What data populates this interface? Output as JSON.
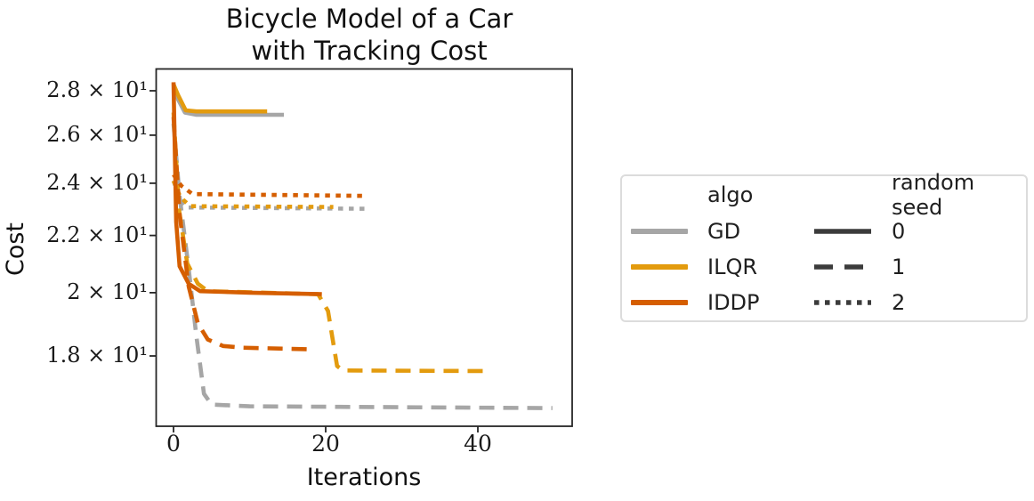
{
  "title": {
    "line1": "Bicycle Model of a Car",
    "line2": "with Tracking Cost"
  },
  "axes": {
    "x_label": "Iterations",
    "y_label": "Cost",
    "x_tick_labels": [
      "0",
      "20",
      "40"
    ],
    "y_tick_labels": [
      "2.8 × 10¹",
      "2.6 × 10¹",
      "2.4 × 10¹",
      "2.2 × 10¹",
      "2 × 10¹",
      "1.8 × 10¹"
    ]
  },
  "legend": {
    "algo_header": "algo",
    "seed_header": "random seed",
    "algo_items": [
      {
        "label": "GD",
        "color": "#A6A6A6"
      },
      {
        "label": "ILQR",
        "color": "#E39B0E"
      },
      {
        "label": "IDDP",
        "color": "#D55E00"
      }
    ],
    "seed_items": [
      {
        "label": "0",
        "style": "solid"
      },
      {
        "label": "1",
        "style": "dashed"
      },
      {
        "label": "2",
        "style": "dotted"
      }
    ],
    "seed_line_color": "#3B3B3B",
    "border_color": "#DCDCDC"
  },
  "chart_data": {
    "type": "line",
    "title": "Bicycle Model of a Car with Tracking Cost",
    "xlabel": "Iterations",
    "ylabel": "Cost",
    "yscale": "log",
    "xlim": [
      -2.3,
      52.4
    ],
    "ylim": [
      16.0,
      29.1
    ],
    "x_ticks": [
      0,
      20,
      40
    ],
    "y_ticks": [
      28,
      26,
      24,
      22,
      20,
      18
    ],
    "grid": false,
    "legend_position": "right-of-axes",
    "series": [
      {
        "name": "GD seed 0",
        "algo": "GD",
        "seed": 0,
        "color": "#A6A6A6",
        "style": "solid",
        "points": [
          [
            0,
            28.3
          ],
          [
            0.6,
            27.6
          ],
          [
            1.5,
            27.0
          ],
          [
            3,
            26.9
          ],
          [
            14.5,
            26.9
          ]
        ]
      },
      {
        "name": "GD seed 1",
        "algo": "GD",
        "seed": 1,
        "color": "#A6A6A6",
        "style": "dashed",
        "points": [
          [
            0,
            26.5
          ],
          [
            0.8,
            23.5
          ],
          [
            2,
            20.8
          ],
          [
            3,
            18.6
          ],
          [
            4,
            16.9
          ],
          [
            5,
            16.6
          ],
          [
            10,
            16.55
          ],
          [
            49.8,
            16.5
          ]
        ]
      },
      {
        "name": "GD seed 2",
        "algo": "GD",
        "seed": 2,
        "color": "#A6A6A6",
        "style": "dotted",
        "points": [
          [
            0,
            24.1
          ],
          [
            0.8,
            23.4
          ],
          [
            1.8,
            23.05
          ],
          [
            25.5,
            23.0
          ]
        ]
      },
      {
        "name": "ILQR seed 0",
        "algo": "ILQR",
        "seed": 0,
        "color": "#E39B0E",
        "style": "solid",
        "points": [
          [
            0,
            28.3
          ],
          [
            0.6,
            27.8
          ],
          [
            1.6,
            27.1
          ],
          [
            3,
            27.05
          ],
          [
            12.3,
            27.05
          ]
        ]
      },
      {
        "name": "ILQR seed 1",
        "algo": "ILQR",
        "seed": 1,
        "color": "#E39B0E",
        "style": "dashed",
        "points": [
          [
            0,
            27.0
          ],
          [
            0.7,
            23.0
          ],
          [
            1.8,
            21.0
          ],
          [
            3.2,
            20.3
          ],
          [
            4.5,
            20.05
          ],
          [
            19,
            19.95
          ],
          [
            20.3,
            19.4
          ],
          [
            21.5,
            17.7
          ],
          [
            22.3,
            17.57
          ],
          [
            41.4,
            17.55
          ]
        ]
      },
      {
        "name": "ILQR seed 2",
        "algo": "ILQR",
        "seed": 2,
        "color": "#E39B0E",
        "style": "dotted",
        "points": [
          [
            0,
            24.1
          ],
          [
            0.9,
            23.45
          ],
          [
            2.2,
            23.1
          ],
          [
            21,
            23.07
          ]
        ]
      },
      {
        "name": "IDDP seed 0",
        "algo": "IDDP",
        "seed": 0,
        "color": "#D55E00",
        "style": "solid",
        "points": [
          [
            0,
            28.4
          ],
          [
            0.35,
            22.5
          ],
          [
            0.8,
            20.9
          ],
          [
            2,
            20.3
          ],
          [
            3.5,
            20.05
          ],
          [
            10,
            20.0
          ],
          [
            19.5,
            19.95
          ]
        ]
      },
      {
        "name": "IDDP seed 1",
        "algo": "IDDP",
        "seed": 1,
        "color": "#D55E00",
        "style": "dashed",
        "points": [
          [
            0,
            26.8
          ],
          [
            0.8,
            22.8
          ],
          [
            2,
            20.2
          ],
          [
            3.2,
            19.0
          ],
          [
            4.5,
            18.5
          ],
          [
            6.5,
            18.3
          ],
          [
            9,
            18.25
          ],
          [
            17.8,
            18.2
          ]
        ]
      },
      {
        "name": "IDDP seed 2",
        "algo": "IDDP",
        "seed": 2,
        "color": "#D55E00",
        "style": "dotted",
        "points": [
          [
            0,
            24.35
          ],
          [
            1,
            23.9
          ],
          [
            2.5,
            23.57
          ],
          [
            25,
            23.5
          ]
        ]
      }
    ]
  }
}
